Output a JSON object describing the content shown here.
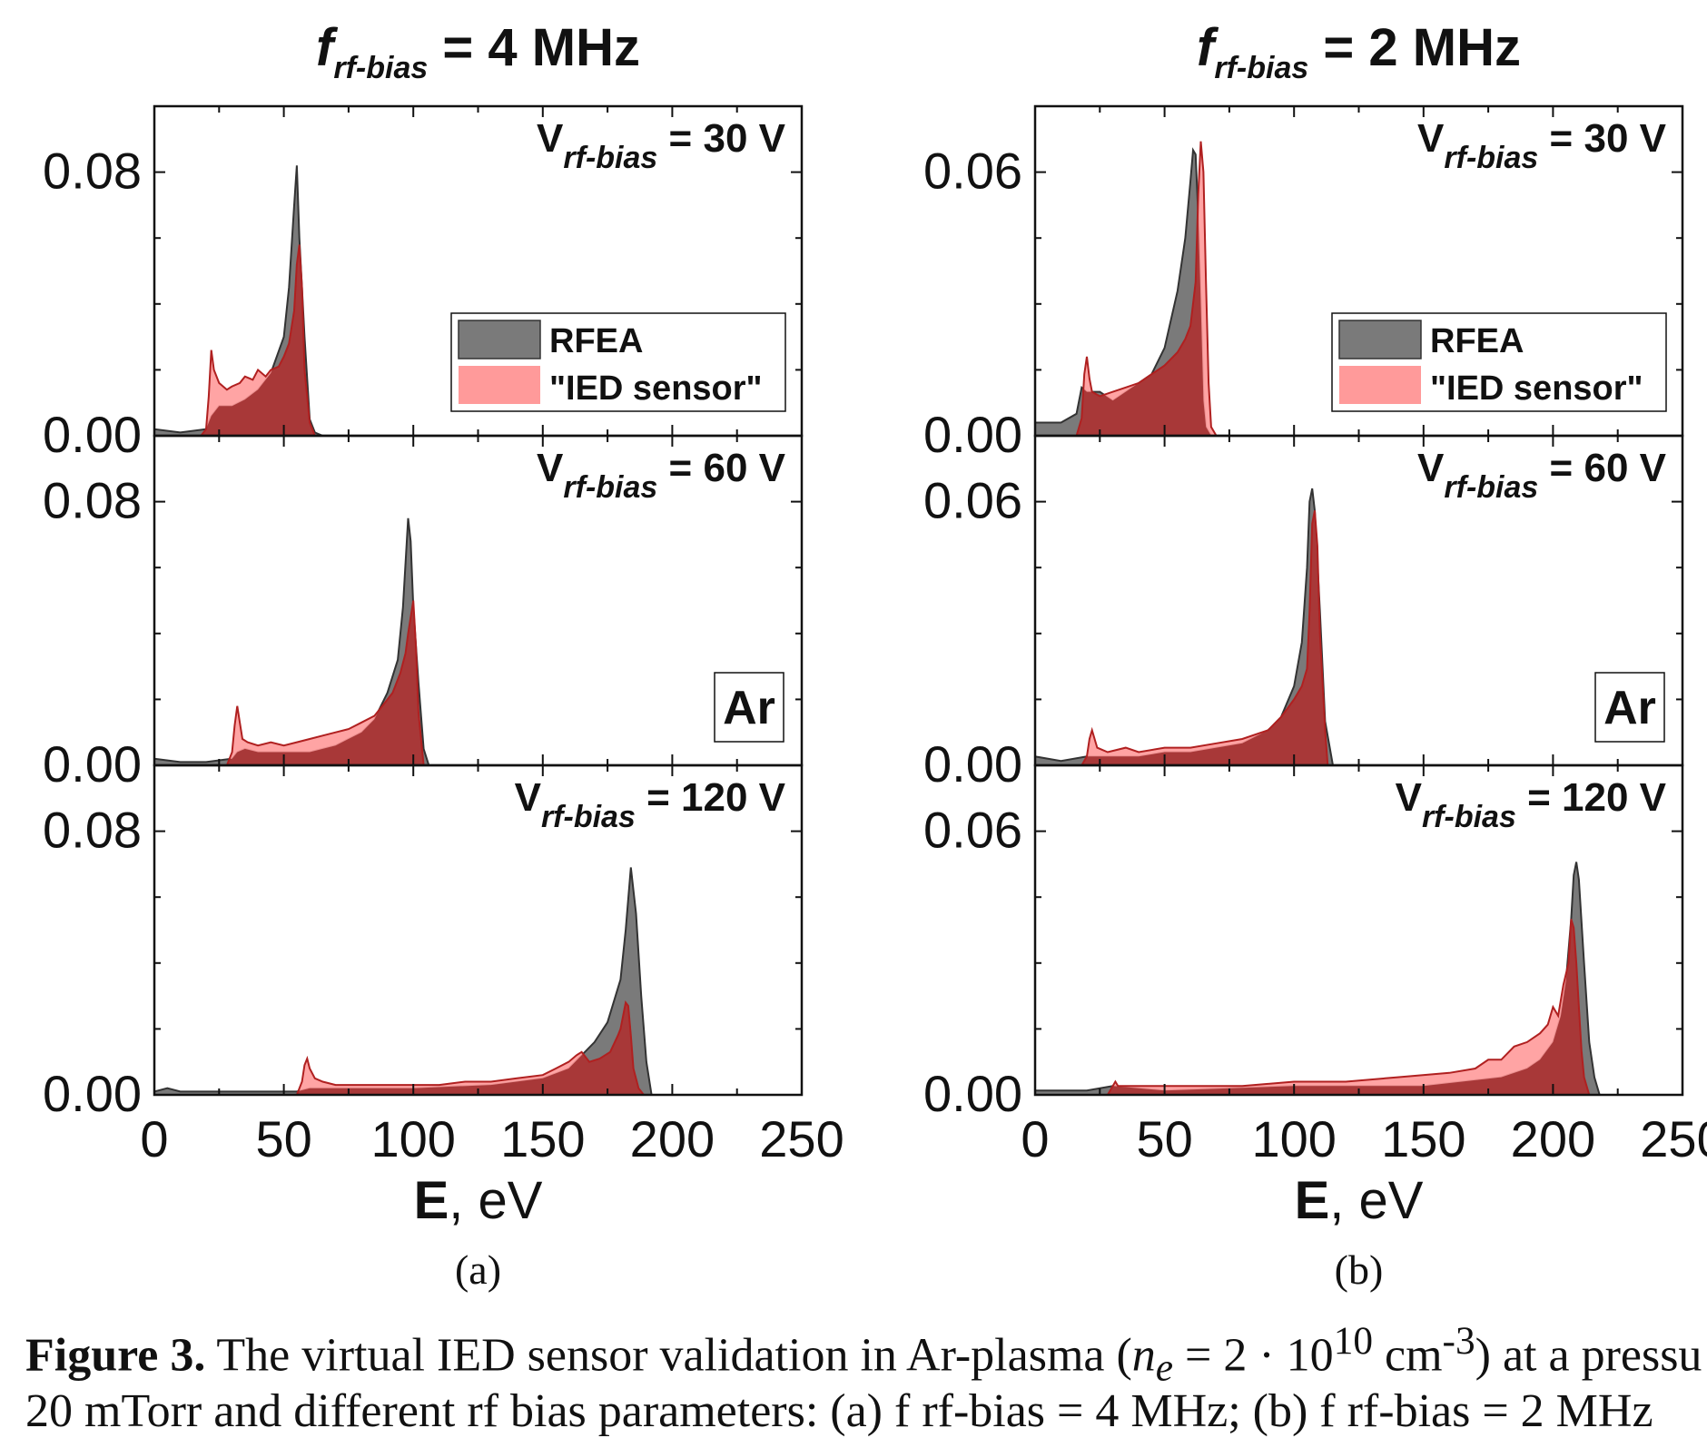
{
  "panels": [
    {
      "id": "a",
      "title_prefix": "f",
      "title_sub": "rf-bias",
      "title_suffix": "= 4 MHz",
      "panel_label": "(a)"
    },
    {
      "id": "b",
      "title_prefix": "f",
      "title_sub": "rf-bias",
      "title_suffix": "= 2 MHz",
      "panel_label": "(b)"
    }
  ],
  "caption": {
    "label": "Figure 3.",
    "text_before": " The virtual IED sensor validation in Ar-plasma (",
    "math": "n",
    "math_sub": "e",
    "math_rest": " = 2 · 10",
    "math_sup": "10",
    "unit": " cm",
    "unit_sup": "-3",
    "text_after": ") at a pressu",
    "line2": "20 mTorr and different rf bias parameters: (a) f rf-bias = 4 MHz; (b) f rf-bias = 2 MHz"
  },
  "colors": {
    "rfea": "#7a7a7a",
    "sensor_fill": "#ff9a9a",
    "overlap": "#a83838",
    "sensor_line": "#b02020"
  },
  "chart_data": [
    {
      "type": "area",
      "panel": "a",
      "title": "f rf-bias = 4 MHz",
      "xlabel_bold": "E",
      "xlabel_rest": ", eV",
      "xlim": [
        0,
        250
      ],
      "xticks": [
        0,
        50,
        100,
        150,
        200,
        250
      ],
      "legend": {
        "entries": [
          "RFEA",
          "\"IED sensor\""
        ],
        "placement": "top-right of first subplot"
      },
      "inset_label": "Ar",
      "subplots": [
        {
          "label_prefix": "V",
          "label_sub": "rf-bias",
          "label_suffix": "= 30 V",
          "ylim": [
            0,
            0.1
          ],
          "yticks": [
            0.0,
            0.08
          ],
          "series": [
            {
              "name": "RFEA",
              "x": [
                0,
                10,
                20,
                22,
                25,
                30,
                35,
                40,
                45,
                50,
                52,
                54,
                55,
                56,
                58,
                60,
                62,
                65,
                250
              ],
              "y": [
                0.002,
                0.001,
                0.002,
                0.006,
                0.009,
                0.009,
                0.011,
                0.014,
                0.019,
                0.03,
                0.045,
                0.07,
                0.082,
                0.06,
                0.03,
                0.005,
                0.001,
                0,
                0
              ]
            },
            {
              "name": "\"IED sensor\"",
              "x": [
                0,
                18,
                20,
                21,
                22,
                23,
                25,
                28,
                30,
                33,
                35,
                38,
                40,
                43,
                45,
                48,
                50,
                52,
                54,
                55,
                56,
                57,
                58,
                60,
                62,
                250
              ],
              "y": [
                0,
                0,
                0.002,
                0.012,
                0.026,
                0.02,
                0.016,
                0.014,
                0.015,
                0.016,
                0.018,
                0.017,
                0.02,
                0.018,
                0.02,
                0.021,
                0.024,
                0.028,
                0.038,
                0.052,
                0.058,
                0.045,
                0.02,
                0.004,
                0,
                0
              ]
            }
          ]
        },
        {
          "label_prefix": "V",
          "label_sub": "rf-bias",
          "label_suffix": "= 60 V",
          "ylim": [
            0,
            0.1
          ],
          "yticks": [
            0.0,
            0.08
          ],
          "series": [
            {
              "name": "RFEA",
              "x": [
                0,
                10,
                20,
                30,
                32,
                35,
                40,
                50,
                60,
                70,
                80,
                85,
                90,
                94,
                96,
                98,
                99,
                100,
                102,
                104,
                106,
                250
              ],
              "y": [
                0.002,
                0.001,
                0.001,
                0.002,
                0.004,
                0.005,
                0.004,
                0.004,
                0.004,
                0.006,
                0.01,
                0.014,
                0.022,
                0.032,
                0.048,
                0.075,
                0.068,
                0.048,
                0.025,
                0.005,
                0,
                0
              ]
            },
            {
              "name": "\"IED sensor\"",
              "x": [
                0,
                28,
                30,
                31,
                32,
                33,
                34,
                36,
                40,
                45,
                50,
                55,
                60,
                65,
                70,
                75,
                80,
                85,
                88,
                92,
                95,
                97,
                98,
                100,
                101,
                102,
                104,
                250
              ],
              "y": [
                0,
                0,
                0.004,
                0.012,
                0.018,
                0.013,
                0.008,
                0.007,
                0.006,
                0.007,
                0.006,
                0.007,
                0.008,
                0.009,
                0.01,
                0.011,
                0.013,
                0.015,
                0.018,
                0.022,
                0.028,
                0.034,
                0.04,
                0.05,
                0.036,
                0.016,
                0,
                0
              ]
            }
          ]
        },
        {
          "label_prefix": "V",
          "label_sub": "rf-bias",
          "label_suffix": "= 120 V",
          "ylim": [
            0,
            0.1
          ],
          "yticks": [
            0.0,
            0.08
          ],
          "series": [
            {
              "name": "RFEA",
              "x": [
                0,
                5,
                10,
                20,
                40,
                55,
                60,
                70,
                100,
                130,
                150,
                160,
                165,
                170,
                175,
                180,
                182,
                184,
                186,
                188,
                190,
                192,
                250
              ],
              "y": [
                0.001,
                0.002,
                0.001,
                0.001,
                0.001,
                0.001,
                0.002,
                0.002,
                0.002,
                0.003,
                0.005,
                0.008,
                0.012,
                0.016,
                0.022,
                0.035,
                0.05,
                0.069,
                0.055,
                0.03,
                0.01,
                0,
                0
              ]
            },
            {
              "name": "\"IED sensor\"",
              "x": [
                0,
                55,
                57,
                58,
                59,
                60,
                62,
                65,
                70,
                80,
                90,
                100,
                110,
                120,
                130,
                140,
                150,
                155,
                160,
                163,
                165,
                168,
                172,
                176,
                179,
                180,
                182,
                183,
                184,
                185,
                187,
                189,
                250
              ],
              "y": [
                0,
                0,
                0.004,
                0.009,
                0.011,
                0.008,
                0.005,
                0.004,
                0.003,
                0.003,
                0.003,
                0.003,
                0.003,
                0.004,
                0.004,
                0.005,
                0.006,
                0.008,
                0.01,
                0.012,
                0.013,
                0.01,
                0.011,
                0.013,
                0.018,
                0.02,
                0.028,
                0.027,
                0.018,
                0.008,
                0.002,
                0,
                0
              ]
            }
          ]
        }
      ]
    },
    {
      "type": "area",
      "panel": "b",
      "title": "f rf-bias = 2 MHz",
      "xlabel_bold": "E",
      "xlabel_rest": ", eV",
      "xlim": [
        0,
        250
      ],
      "xticks": [
        0,
        50,
        100,
        150,
        200,
        250
      ],
      "legend": {
        "entries": [
          "RFEA",
          "\"IED sensor\""
        ],
        "placement": "top-right of first subplot"
      },
      "inset_label": "Ar",
      "subplots": [
        {
          "label_prefix": "V",
          "label_sub": "rf-bias",
          "label_suffix": "= 30 V",
          "ylim": [
            0,
            0.075
          ],
          "yticks": [
            0.0,
            0.06
          ],
          "series": [
            {
              "name": "RFEA",
              "x": [
                0,
                10,
                16,
                18,
                20,
                25,
                30,
                40,
                45,
                50,
                55,
                58,
                60,
                61,
                62,
                63,
                64,
                65,
                66,
                68,
                250
              ],
              "y": [
                0.003,
                0.003,
                0.005,
                0.011,
                0.01,
                0.01,
                0.008,
                0.012,
                0.014,
                0.02,
                0.033,
                0.045,
                0.058,
                0.065,
                0.064,
                0.05,
                0.03,
                0.008,
                0.002,
                0,
                0
              ]
            },
            {
              "name": "\"IED sensor\"",
              "x": [
                0,
                16,
                18,
                19,
                20,
                21,
                22,
                25,
                30,
                35,
                40,
                45,
                50,
                55,
                58,
                60,
                62,
                63,
                64,
                65,
                66,
                67,
                68,
                70,
                250
              ],
              "y": [
                0,
                0,
                0.004,
                0.014,
                0.018,
                0.013,
                0.01,
                0.009,
                0.01,
                0.011,
                0.012,
                0.014,
                0.016,
                0.019,
                0.022,
                0.025,
                0.035,
                0.055,
                0.067,
                0.06,
                0.035,
                0.012,
                0.002,
                0,
                0
              ]
            }
          ]
        },
        {
          "label_prefix": "V",
          "label_sub": "rf-bias",
          "label_suffix": "= 60 V",
          "ylim": [
            0,
            0.075
          ],
          "yticks": [
            0.0,
            0.06
          ],
          "series": [
            {
              "name": "RFEA",
              "x": [
                0,
                10,
                20,
                30,
                40,
                50,
                60,
                70,
                80,
                90,
                95,
                100,
                103,
                105,
                106,
                107,
                108,
                110,
                112,
                115,
                250
              ],
              "y": [
                0.002,
                0.001,
                0.002,
                0.002,
                0.002,
                0.003,
                0.003,
                0.004,
                0.005,
                0.008,
                0.011,
                0.018,
                0.028,
                0.045,
                0.06,
                0.063,
                0.058,
                0.035,
                0.01,
                0,
                0
              ]
            },
            {
              "name": "\"IED sensor\"",
              "x": [
                0,
                18,
                20,
                21,
                22,
                24,
                28,
                35,
                40,
                50,
                60,
                70,
                80,
                90,
                95,
                100,
                103,
                105,
                106,
                107,
                108,
                109,
                110,
                112,
                113,
                250
              ],
              "y": [
                0,
                0,
                0.002,
                0.006,
                0.008,
                0.004,
                0.003,
                0.004,
                0.003,
                0.004,
                0.004,
                0.005,
                0.006,
                0.008,
                0.011,
                0.015,
                0.018,
                0.022,
                0.035,
                0.055,
                0.058,
                0.05,
                0.03,
                0.008,
                0,
                0
              ]
            }
          ]
        },
        {
          "label_prefix": "V",
          "label_sub": "rf-bias",
          "label_suffix": "= 120 V",
          "ylim": [
            0,
            0.075
          ],
          "yticks": [
            0.0,
            0.06
          ],
          "series": [
            {
              "name": "RFEA",
              "x": [
                0,
                10,
                20,
                30,
                50,
                100,
                150,
                180,
                190,
                195,
                200,
                203,
                205,
                207,
                208,
                209,
                210,
                212,
                214,
                216,
                218,
                250
              ],
              "y": [
                0.001,
                0.001,
                0.001,
                0.002,
                0.001,
                0.002,
                0.002,
                0.004,
                0.006,
                0.008,
                0.012,
                0.018,
                0.026,
                0.04,
                0.05,
                0.053,
                0.049,
                0.03,
                0.012,
                0.004,
                0,
                0
              ]
            },
            {
              "name": "\"IED sensor\"",
              "x": [
                0,
                28,
                30,
                31,
                32,
                34,
                40,
                60,
                80,
                100,
                120,
                140,
                160,
                170,
                175,
                180,
                185,
                190,
                195,
                198,
                200,
                202,
                204,
                206,
                207,
                208,
                209,
                210,
                211,
                212,
                214,
                250
              ],
              "y": [
                0,
                0,
                0.002,
                0.003,
                0.002,
                0.002,
                0.002,
                0.002,
                0.002,
                0.003,
                0.003,
                0.004,
                0.005,
                0.006,
                0.008,
                0.008,
                0.011,
                0.012,
                0.014,
                0.016,
                0.02,
                0.018,
                0.025,
                0.03,
                0.04,
                0.038,
                0.03,
                0.02,
                0.01,
                0.004,
                0,
                0
              ]
            }
          ]
        }
      ]
    }
  ]
}
